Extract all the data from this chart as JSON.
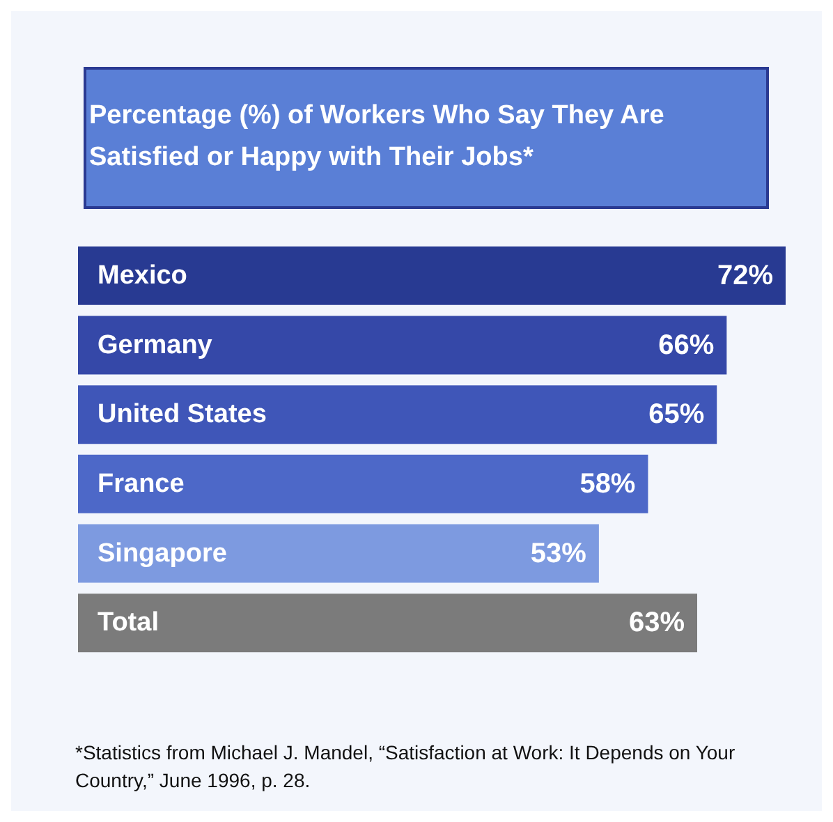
{
  "chart_data": {
    "type": "bar",
    "orientation": "horizontal",
    "title": "Percentage (%) of Workers Who Say They Are Satisfied or Happy with Their Jobs*",
    "categories": [
      "Mexico",
      "Germany",
      "United States",
      "France",
      "Singapore",
      "Total"
    ],
    "values": [
      72,
      66,
      65,
      58,
      53,
      63
    ],
    "colors": [
      "#283a92",
      "#3548a8",
      "#3f56b8",
      "#4d68c8",
      "#7d9ae0",
      "#7b7b7b"
    ],
    "value_labels": [
      "72%",
      "66%",
      "65%",
      "58%",
      "53%",
      "63%"
    ],
    "annotations": [
      "*Statistics from Michael J. Mandel, “Satisfaction at Work: It Depends on Your Country,” June 1996, p. 28."
    ]
  }
}
